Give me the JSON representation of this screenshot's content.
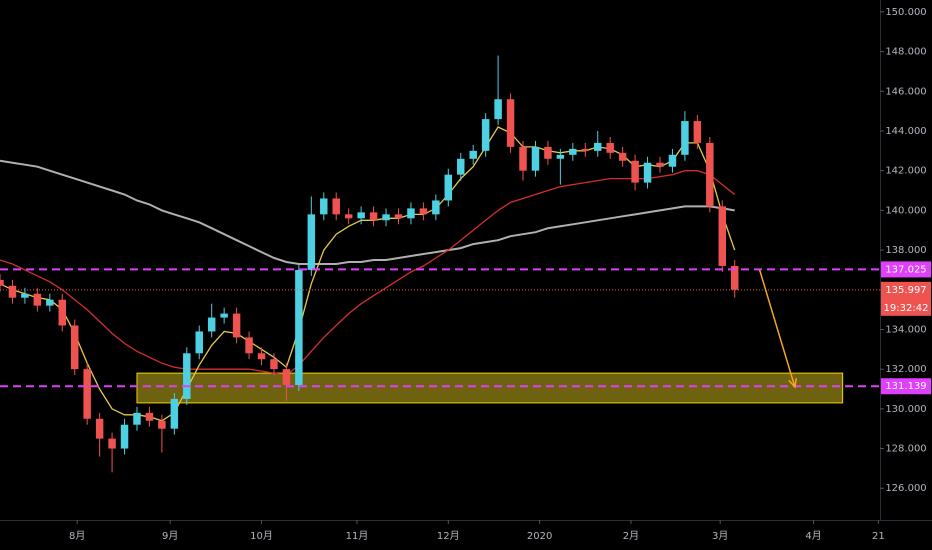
{
  "chart_data": {
    "type": "candlestick",
    "x": [
      0,
      3,
      6,
      9,
      12,
      15,
      18,
      21,
      24,
      27,
      30,
      33,
      36,
      39,
      42,
      45,
      48,
      51,
      54,
      57,
      60,
      63,
      66,
      69,
      72,
      75,
      78,
      81,
      84,
      87,
      90,
      93,
      96,
      99,
      102,
      105,
      108,
      111,
      114,
      117,
      120,
      123,
      126,
      129,
      132,
      135,
      138,
      141,
      144,
      147,
      150,
      153,
      156,
      159,
      162,
      165,
      168,
      171,
      174,
      177
    ],
    "open": [
      136.5,
      136.2,
      135.6,
      135.8,
      135.2,
      135.5,
      134.2,
      132.0,
      129.5,
      128.5,
      128.0,
      129.2,
      129.8,
      129.4,
      129.0,
      130.5,
      132.8,
      133.9,
      134.6,
      134.8,
      133.6,
      132.8,
      132.5,
      132.0,
      131.2,
      137.0,
      139.8,
      140.6,
      139.8,
      139.6,
      139.9,
      139.5,
      139.8,
      139.6,
      140.1,
      139.8,
      140.5,
      141.8,
      142.6,
      143.0,
      144.6,
      145.6,
      143.2,
      142.0,
      143.2,
      142.6,
      142.8,
      143.1,
      143.0,
      143.4,
      142.9,
      142.5,
      141.4,
      142.4,
      142.2,
      142.8,
      144.5,
      143.4,
      140.2,
      137.2
    ],
    "high": [
      136.8,
      136.5,
      136.1,
      136.1,
      135.8,
      135.8,
      134.5,
      132.3,
      129.8,
      128.8,
      129.5,
      130.1,
      130.1,
      129.7,
      130.8,
      133.1,
      134.2,
      135.3,
      135.1,
      135.1,
      133.9,
      133.1,
      132.8,
      132.3,
      137.3,
      140.7,
      140.9,
      140.9,
      140.1,
      140.2,
      140.2,
      140.1,
      140.1,
      140.4,
      140.4,
      140.8,
      142.1,
      142.9,
      143.3,
      144.9,
      147.8,
      145.9,
      143.5,
      143.5,
      143.5,
      143.1,
      143.4,
      143.4,
      144.0,
      143.7,
      143.2,
      142.8,
      142.7,
      142.7,
      143.1,
      145.0,
      144.8,
      143.7,
      140.5,
      137.5
    ],
    "low": [
      135.9,
      135.3,
      135.3,
      134.9,
      134.9,
      133.9,
      131.7,
      129.2,
      127.6,
      126.8,
      127.7,
      128.9,
      129.1,
      127.8,
      128.7,
      130.2,
      132.5,
      133.6,
      134.3,
      133.3,
      132.5,
      132.2,
      131.7,
      130.4,
      130.9,
      136.7,
      139.5,
      139.5,
      139.3,
      139.3,
      139.2,
      139.2,
      139.3,
      139.3,
      139.5,
      139.5,
      140.2,
      141.5,
      142.3,
      142.7,
      144.3,
      142.9,
      141.5,
      141.7,
      142.3,
      141.3,
      142.5,
      142.7,
      142.7,
      142.6,
      142.2,
      141.0,
      141.1,
      141.9,
      141.9,
      142.5,
      143.1,
      139.9,
      136.9,
      135.6
    ],
    "close": [
      136.2,
      135.6,
      135.8,
      135.2,
      135.5,
      134.2,
      132.0,
      129.5,
      128.5,
      128.0,
      129.2,
      129.8,
      129.4,
      129.0,
      130.5,
      132.8,
      133.9,
      134.6,
      134.8,
      133.6,
      132.8,
      132.5,
      132.0,
      131.2,
      137.0,
      139.8,
      140.6,
      139.8,
      139.6,
      139.9,
      139.5,
      139.8,
      139.6,
      140.1,
      139.8,
      140.5,
      141.8,
      142.6,
      143.0,
      144.6,
      145.6,
      143.2,
      142.0,
      143.2,
      142.6,
      142.8,
      143.1,
      143.0,
      143.4,
      142.9,
      142.5,
      141.4,
      142.4,
      142.2,
      142.8,
      144.5,
      143.4,
      140.2,
      137.2,
      136.0
    ],
    "up_color": "#4dd0e1",
    "down_color": "#ef5350",
    "lines": [
      {
        "color": "#b0b0b0",
        "values": [
          142.5,
          142.4,
          142.3,
          142.2,
          142.0,
          141.8,
          141.6,
          141.4,
          141.2,
          141.0,
          140.8,
          140.5,
          140.3,
          140.0,
          139.8,
          139.6,
          139.4,
          139.1,
          138.8,
          138.5,
          138.2,
          137.9,
          137.6,
          137.4,
          137.3,
          137.3,
          137.3,
          137.3,
          137.4,
          137.4,
          137.5,
          137.5,
          137.6,
          137.7,
          137.8,
          137.9,
          138.0,
          138.1,
          138.3,
          138.4,
          138.5,
          138.7,
          138.8,
          138.9,
          139.1,
          139.2,
          139.3,
          139.4,
          139.5,
          139.6,
          139.7,
          139.8,
          139.9,
          140.0,
          140.1,
          140.2,
          140.2,
          140.2,
          140.1,
          140.0
        ]
      },
      {
        "color": "#d32f2f",
        "values": [
          137.5,
          137.3,
          137.0,
          136.7,
          136.4,
          136.0,
          135.5,
          135.0,
          134.4,
          133.8,
          133.3,
          132.9,
          132.6,
          132.3,
          132.1,
          132.0,
          132.0,
          132.0,
          132.0,
          132.0,
          132.0,
          131.9,
          131.8,
          131.7,
          132.2,
          132.9,
          133.6,
          134.2,
          134.8,
          135.3,
          135.7,
          136.1,
          136.5,
          136.9,
          137.2,
          137.6,
          138.0,
          138.5,
          139.0,
          139.5,
          140.0,
          140.4,
          140.6,
          140.8,
          141.0,
          141.2,
          141.3,
          141.4,
          141.5,
          141.6,
          141.6,
          141.6,
          141.6,
          141.7,
          141.8,
          142.0,
          142.0,
          141.8,
          141.3,
          140.8
        ]
      },
      {
        "color": "#e6c94a",
        "values": [
          136.3,
          136.0,
          135.8,
          135.6,
          135.5,
          135.0,
          133.8,
          132.3,
          131.0,
          130.0,
          129.7,
          129.7,
          129.6,
          129.4,
          129.8,
          131.0,
          132.2,
          133.2,
          133.9,
          133.8,
          133.4,
          133.0,
          132.6,
          132.1,
          134.0,
          136.3,
          138.0,
          138.8,
          139.2,
          139.5,
          139.5,
          139.6,
          139.6,
          139.8,
          139.8,
          140.1,
          140.8,
          141.6,
          142.2,
          143.2,
          144.2,
          143.9,
          143.2,
          143.2,
          143.0,
          142.9,
          143.0,
          143.0,
          143.2,
          143.1,
          142.8,
          142.2,
          142.3,
          142.2,
          142.5,
          143.4,
          143.4,
          142.0,
          139.8,
          138.0
        ]
      }
    ],
    "xlim": [
      0,
      212
    ],
    "xticks": [
      {
        "value": 18.6,
        "label": "8月"
      },
      {
        "value": 41,
        "label": "9月"
      },
      {
        "value": 63,
        "label": "10月"
      },
      {
        "value": 86,
        "label": "11月"
      },
      {
        "value": 108,
        "label": "12月"
      },
      {
        "value": 130,
        "label": "2020"
      },
      {
        "value": 152,
        "label": "2月"
      },
      {
        "value": 173.5,
        "label": "3月"
      },
      {
        "value": 196,
        "label": "4月"
      },
      {
        "value": 211.6,
        "label": "21"
      }
    ],
    "ylim": [
      124.4,
      150.6
    ],
    "yticks": [
      {
        "value": 126,
        "label": "126.000"
      },
      {
        "value": 128,
        "label": "128.000"
      },
      {
        "value": 130,
        "label": "130.000"
      },
      {
        "value": 132,
        "label": "132.000"
      },
      {
        "value": 134,
        "label": "134.000"
      },
      {
        "value": 136,
        "label": "136.000"
      },
      {
        "value": 138,
        "label": "138.000"
      },
      {
        "value": 140,
        "label": "140.000"
      },
      {
        "value": 142,
        "label": "142.000"
      },
      {
        "value": 144,
        "label": "144.000"
      },
      {
        "value": 146,
        "label": "146.000"
      },
      {
        "value": 148,
        "label": "148.000"
      },
      {
        "value": 150,
        "label": "150.000"
      }
    ],
    "hlines": [
      {
        "value": 137.025,
        "color": "#e040fb"
      },
      {
        "value": 131.139,
        "color": "#e040fb"
      }
    ],
    "price_line": {
      "value": 135.997,
      "color": "#ef5350",
      "countdown": "19:32:42"
    },
    "zone": {
      "x": [
        33,
        203
      ],
      "y": [
        130.3,
        131.8
      ],
      "color": "#c9b21f"
    },
    "arrow": {
      "x": [
        183,
        191.5
      ],
      "y": [
        137.0,
        131.1
      ],
      "color": "#f5a623"
    }
  }
}
